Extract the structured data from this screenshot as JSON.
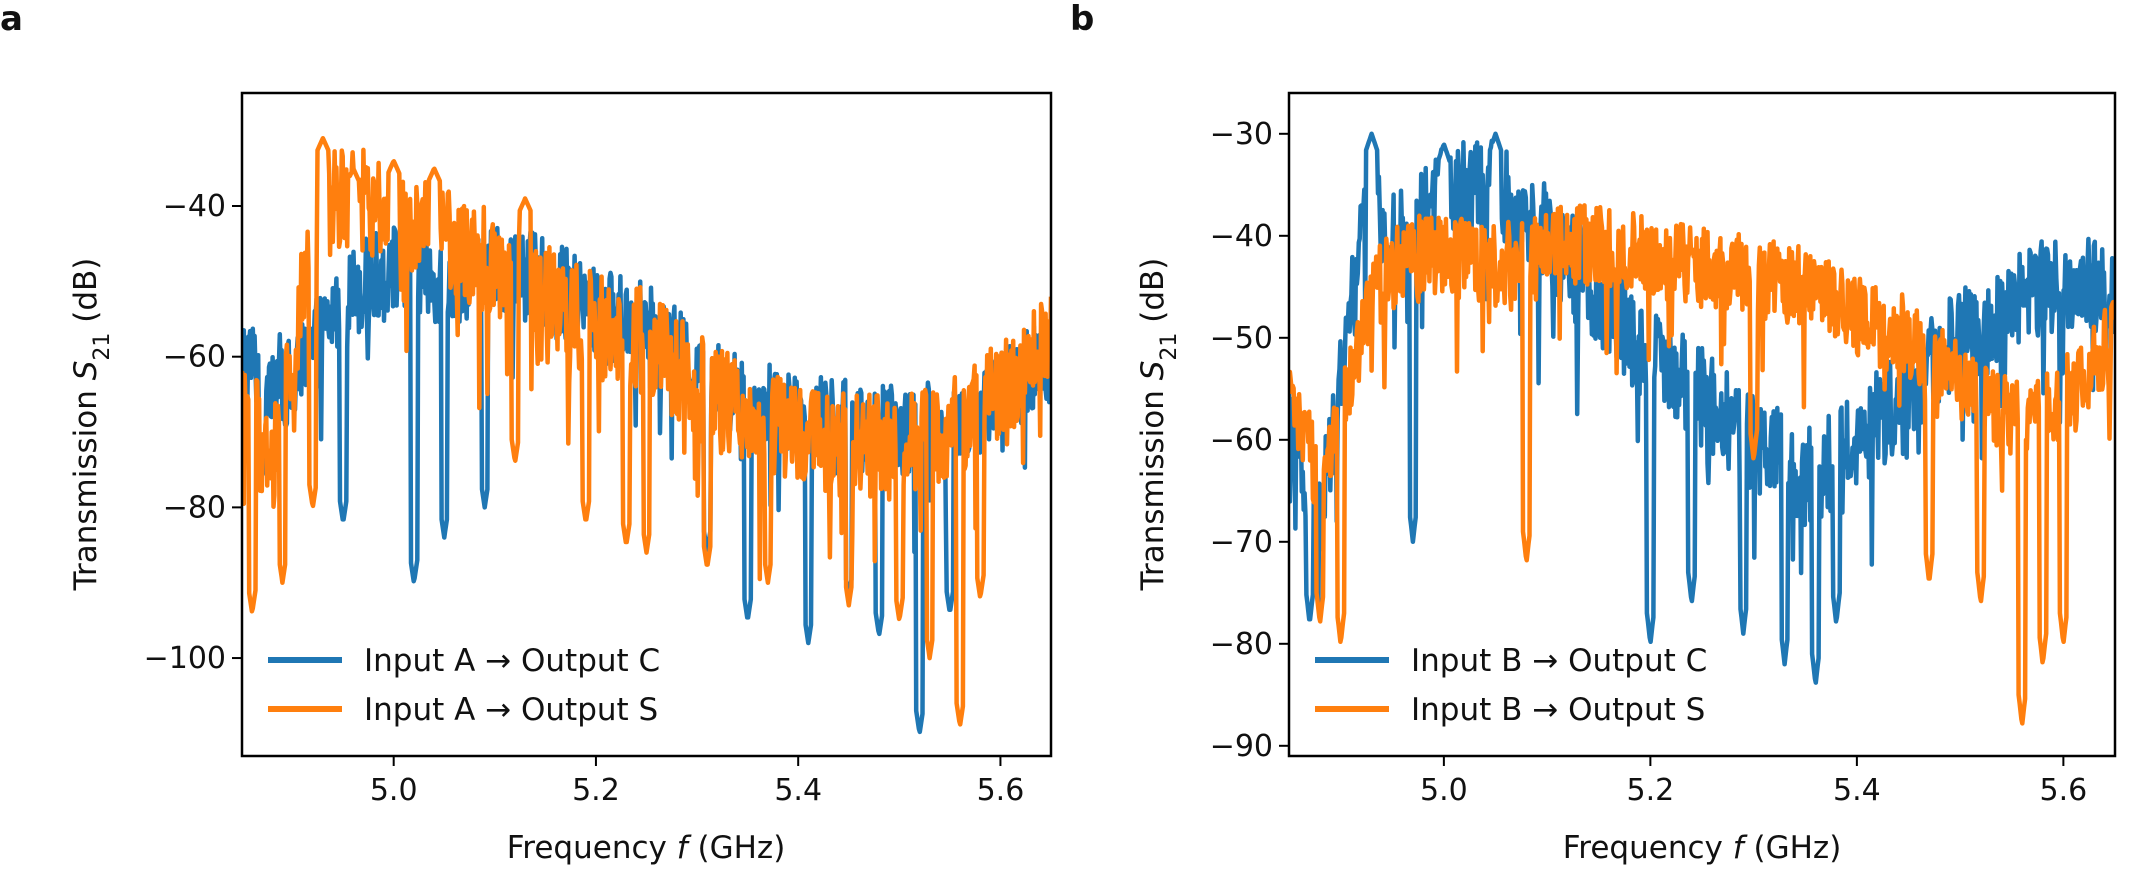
{
  "chart_data": [
    {
      "panel": "a",
      "type": "line",
      "xlabel_prefix": "Frequency ",
      "xlabel_var": "f",
      "xlabel_suffix": " (GHz)",
      "ylabel_prefix": "Transmission ",
      "ylabel_var": "S",
      "ylabel_sub": "21",
      "ylabel_suffix": " (dB)",
      "xlim": [
        4.85,
        5.65
      ],
      "ylim": [
        -113,
        -25
      ],
      "xticks": [
        5.0,
        5.2,
        5.4,
        5.6
      ],
      "xtick_labels": [
        "5.0",
        "5.2",
        "5.4",
        "5.6"
      ],
      "yticks": [
        -40,
        -60,
        -80,
        -100
      ],
      "ytick_labels": [
        "−40",
        "−60",
        "−80",
        "−100"
      ],
      "legend_position": "lower-left",
      "series": [
        {
          "name": "Input A → Output C",
          "color": "#1f77b4",
          "x": [
            4.85,
            4.9,
            4.95,
            5.0,
            5.05,
            5.1,
            5.15,
            5.2,
            5.25,
            5.3,
            5.35,
            5.4,
            5.45,
            5.5,
            5.55,
            5.6,
            5.65
          ],
          "y": [
            -60,
            -64,
            -52,
            -48,
            -50,
            -48,
            -50,
            -54,
            -56,
            -62,
            -66,
            -68,
            -69,
            -70,
            -69,
            -65,
            -60
          ],
          "spikes": [
            [
              4.87,
              -76
            ],
            [
              4.95,
              -82
            ],
            [
              5.02,
              -90
            ],
            [
              5.05,
              -84
            ],
            [
              5.09,
              -80
            ],
            [
              5.31,
              -86
            ],
            [
              5.35,
              -95
            ],
            [
              5.41,
              -98
            ],
            [
              5.45,
              -92
            ],
            [
              5.48,
              -97
            ],
            [
              5.52,
              -110
            ],
            [
              5.55,
              -94
            ]
          ],
          "amp": 6
        },
        {
          "name": "Input A → Output S",
          "color": "#ff7f0e",
          "x": [
            4.85,
            4.88,
            4.91,
            4.93,
            4.96,
            5.0,
            5.05,
            5.1,
            5.15,
            5.2,
            5.25,
            5.3,
            5.35,
            5.4,
            5.45,
            5.5,
            5.55,
            5.6,
            5.65
          ],
          "y": [
            -65,
            -75,
            -52,
            -40,
            -38,
            -42,
            -44,
            -48,
            -52,
            -56,
            -58,
            -64,
            -68,
            -70,
            -72,
            -72,
            -70,
            -64,
            -58
          ],
          "spikes": [
            [
              4.86,
              -94
            ],
            [
              4.89,
              -90
            ],
            [
              4.92,
              -80
            ],
            [
              5.12,
              -74
            ],
            [
              5.19,
              -82
            ],
            [
              5.23,
              -85
            ],
            [
              5.25,
              -86
            ],
            [
              5.31,
              -88
            ],
            [
              5.37,
              -90
            ],
            [
              5.45,
              -93
            ],
            [
              5.5,
              -95
            ],
            [
              5.53,
              -100
            ],
            [
              5.56,
              -109
            ],
            [
              5.58,
              -92
            ]
          ],
          "peaks": [
            [
              4.93,
              -30
            ],
            [
              4.96,
              -34
            ],
            [
              5.0,
              -33
            ],
            [
              5.04,
              -34
            ],
            [
              5.13,
              -38
            ]
          ],
          "amp": 7
        }
      ]
    },
    {
      "panel": "b",
      "type": "line",
      "xlabel_prefix": "Frequency ",
      "xlabel_var": "f",
      "xlabel_suffix": " (GHz)",
      "ylabel_prefix": "Transmission ",
      "ylabel_var": "S",
      "ylabel_sub": "21",
      "ylabel_suffix": " (dB)",
      "xlim": [
        4.85,
        5.65
      ],
      "ylim": [
        -91,
        -26
      ],
      "xticks": [
        5.0,
        5.2,
        5.4,
        5.6
      ],
      "xtick_labels": [
        "5.0",
        "5.2",
        "5.4",
        "5.6"
      ],
      "yticks": [
        -30,
        -40,
        -50,
        -60,
        -70,
        -80,
        -90
      ],
      "ytick_labels": [
        "−30",
        "−40",
        "−50",
        "−60",
        "−70",
        "−80",
        "−90"
      ],
      "legend_position": "lower-left",
      "series": [
        {
          "name": "Input B → Output C",
          "color": "#1f77b4",
          "x": [
            4.85,
            4.88,
            4.9,
            4.92,
            4.95,
            5.0,
            5.05,
            5.1,
            5.15,
            5.2,
            5.25,
            5.3,
            5.35,
            5.4,
            5.45,
            5.5,
            5.55,
            5.6,
            5.65
          ],
          "y": [
            -58,
            -68,
            -55,
            -38,
            -40,
            -36,
            -35,
            -40,
            -46,
            -52,
            -56,
            -60,
            -64,
            -60,
            -55,
            -50,
            -47,
            -44,
            -46
          ],
          "spikes": [
            [
              4.87,
              -78
            ],
            [
              4.97,
              -70
            ],
            [
              5.2,
              -80
            ],
            [
              5.24,
              -76
            ],
            [
              5.29,
              -79
            ],
            [
              5.33,
              -82
            ],
            [
              5.36,
              -84
            ],
            [
              5.38,
              -78
            ]
          ],
          "peaks": [
            [
              4.93,
              -29
            ],
            [
              5.0,
              -30
            ],
            [
              5.05,
              -29
            ]
          ],
          "amp": 5
        },
        {
          "name": "Input B → Output S",
          "color": "#ff7f0e",
          "x": [
            4.85,
            4.88,
            4.9,
            4.93,
            4.96,
            5.0,
            5.05,
            5.1,
            5.15,
            5.2,
            5.25,
            5.3,
            5.35,
            5.4,
            5.45,
            5.5,
            5.55,
            5.6,
            5.65
          ],
          "y": [
            -56,
            -64,
            -58,
            -46,
            -42,
            -42,
            -43,
            -41,
            -41,
            -42,
            -43,
            -44,
            -45,
            -48,
            -50,
            -54,
            -58,
            -56,
            -50
          ],
          "spikes": [
            [
              4.88,
              -78
            ],
            [
              4.9,
              -80
            ],
            [
              5.08,
              -72
            ],
            [
              5.3,
              -62
            ],
            [
              5.47,
              -74
            ],
            [
              5.52,
              -76
            ],
            [
              5.56,
              -88
            ],
            [
              5.58,
              -82
            ],
            [
              5.6,
              -80
            ]
          ],
          "amp": 4
        }
      ]
    }
  ]
}
